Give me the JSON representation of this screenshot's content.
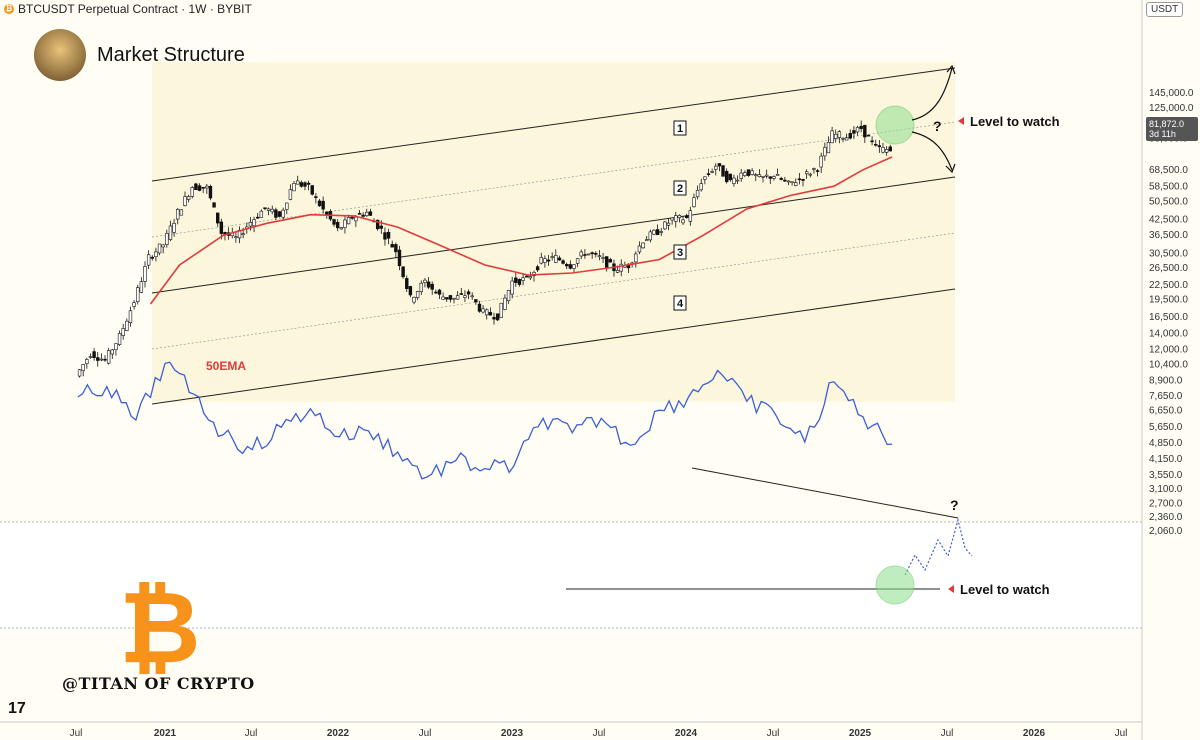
{
  "header": {
    "symbol_line": "BTCUSDT Perpetual Contract · 1W · BYBIT",
    "title": "Market Structure",
    "currency": "USDT",
    "last_price": "81,872.0",
    "countdown": "3d 11h",
    "handle": "@TITAN OF CRYPTO"
  },
  "colors": {
    "ema": "#e03b3b",
    "rsi": "#3a5fd6",
    "up": "#111111",
    "down": "#111111",
    "highlight": "#8ee08e",
    "marker": "#e03b3b"
  },
  "chart_data": {
    "type": "line",
    "y_scale": "log",
    "x_tick_labels": [
      "Jul",
      "2021",
      "Jul",
      "2022",
      "Jul",
      "2023",
      "Jul",
      "2024",
      "Jul",
      "2025",
      "Jul",
      "2026",
      "Jul"
    ],
    "y_tick_labels": [
      "145,000.0",
      "125,000.0",
      "109,000.0",
      "93,000.0",
      "81,872.0",
      "68,500.0",
      "58,500.0",
      "50,500.0",
      "42,500.0",
      "36,500.0",
      "30,500.0",
      "26,500.0",
      "22,500.0",
      "19,500.0",
      "16,500.0",
      "14,000.0",
      "12,000.0",
      "10,400.0",
      "8,900.0",
      "7,650.0",
      "6,650.0",
      "5,650.0",
      "4,850.0",
      "4,150.0",
      "3,550.0",
      "3,100.0",
      "2,700.0",
      "2,360.0",
      "2,060.0"
    ],
    "annotations": {
      "ema_label": "50EMA",
      "level_label_top": "Level to watch",
      "level_label_bottom": "Level to watch",
      "question": "?",
      "zones": [
        "1",
        "2",
        "3",
        "4"
      ]
    },
    "series": [
      {
        "name": "BTCUSDT",
        "points": [
          [
            "2020-07",
            9200
          ],
          [
            "2020-08",
            11500
          ],
          [
            "2020-09",
            10700
          ],
          [
            "2020-10",
            13500
          ],
          [
            "2020-11",
            19000
          ],
          [
            "2020-12",
            29000
          ],
          [
            "2021-01",
            33000
          ],
          [
            "2021-02",
            45000
          ],
          [
            "2021-03",
            58000
          ],
          [
            "2021-04",
            57000
          ],
          [
            "2021-05",
            37000
          ],
          [
            "2021-06",
            35000
          ],
          [
            "2021-07",
            41000
          ],
          [
            "2021-08",
            47000
          ],
          [
            "2021-09",
            43000
          ],
          [
            "2021-10",
            61000
          ],
          [
            "2021-11",
            57000
          ],
          [
            "2021-12",
            46000
          ],
          [
            "2022-01",
            38000
          ],
          [
            "2022-02",
            43000
          ],
          [
            "2022-03",
            45000
          ],
          [
            "2022-04",
            38000
          ],
          [
            "2022-05",
            31000
          ],
          [
            "2022-06",
            19500
          ],
          [
            "2022-07",
            23000
          ],
          [
            "2022-08",
            20000
          ],
          [
            "2022-09",
            19500
          ],
          [
            "2022-10",
            20500
          ],
          [
            "2022-11",
            17000
          ],
          [
            "2022-12",
            16500
          ],
          [
            "2023-01",
            23000
          ],
          [
            "2023-02",
            23500
          ],
          [
            "2023-03",
            28000
          ],
          [
            "2023-04",
            29000
          ],
          [
            "2023-05",
            27000
          ],
          [
            "2023-06",
            30500
          ],
          [
            "2023-07",
            29000
          ],
          [
            "2023-08",
            26000
          ],
          [
            "2023-09",
            27000
          ],
          [
            "2023-10",
            34500
          ],
          [
            "2023-11",
            37500
          ],
          [
            "2023-12",
            42000
          ],
          [
            "2024-01",
            42500
          ],
          [
            "2024-02",
            61000
          ],
          [
            "2024-03",
            71000
          ],
          [
            "2024-04",
            60500
          ],
          [
            "2024-05",
            67500
          ],
          [
            "2024-06",
            62500
          ],
          [
            "2024-07",
            64500
          ],
          [
            "2024-08",
            59000
          ],
          [
            "2024-09",
            63500
          ],
          [
            "2024-10",
            70000
          ],
          [
            "2024-11",
            96000
          ],
          [
            "2024-12",
            94000
          ],
          [
            "2025-01",
            102000
          ],
          [
            "2025-02",
            84000
          ],
          [
            "2025-03",
            81872
          ]
        ]
      },
      {
        "name": "50EMA",
        "points": [
          [
            "2020-12",
            18500
          ],
          [
            "2021-02",
            27000
          ],
          [
            "2021-05",
            36000
          ],
          [
            "2021-08",
            40500
          ],
          [
            "2021-11",
            44000
          ],
          [
            "2022-02",
            43500
          ],
          [
            "2022-05",
            39000
          ],
          [
            "2022-08",
            32500
          ],
          [
            "2022-11",
            27000
          ],
          [
            "2023-02",
            24500
          ],
          [
            "2023-05",
            25000
          ],
          [
            "2023-08",
            26500
          ],
          [
            "2023-11",
            28500
          ],
          [
            "2024-02",
            36000
          ],
          [
            "2024-05",
            46500
          ],
          [
            "2024-08",
            53000
          ],
          [
            "2024-11",
            58000
          ],
          [
            "2025-01",
            68000
          ],
          [
            "2025-03",
            77000
          ]
        ]
      },
      {
        "name": "RSI",
        "points": [
          [
            "2020-07",
            7500
          ],
          [
            "2020-09",
            8300
          ],
          [
            "2020-11",
            6000
          ],
          [
            "2021-01",
            10400
          ],
          [
            "2021-03",
            7700
          ],
          [
            "2021-05",
            5200
          ],
          [
            "2021-07",
            4500
          ],
          [
            "2021-09",
            5600
          ],
          [
            "2021-11",
            6700
          ],
          [
            "2022-01",
            5100
          ],
          [
            "2022-03",
            5400
          ],
          [
            "2022-05",
            4400
          ],
          [
            "2022-07",
            3450
          ],
          [
            "2022-09",
            4050
          ],
          [
            "2022-11",
            3750
          ],
          [
            "2023-01",
            3850
          ],
          [
            "2023-03",
            6100
          ],
          [
            "2023-05",
            5300
          ],
          [
            "2023-07",
            6100
          ],
          [
            "2023-09",
            4700
          ],
          [
            "2023-11",
            6600
          ],
          [
            "2024-01",
            7500
          ],
          [
            "2024-03",
            9700
          ],
          [
            "2024-05",
            7200
          ],
          [
            "2024-07",
            6300
          ],
          [
            "2024-09",
            4850
          ],
          [
            "2024-11",
            8700
          ],
          [
            "2025-01",
            6200
          ],
          [
            "2025-03",
            4750
          ]
        ]
      }
    ]
  }
}
